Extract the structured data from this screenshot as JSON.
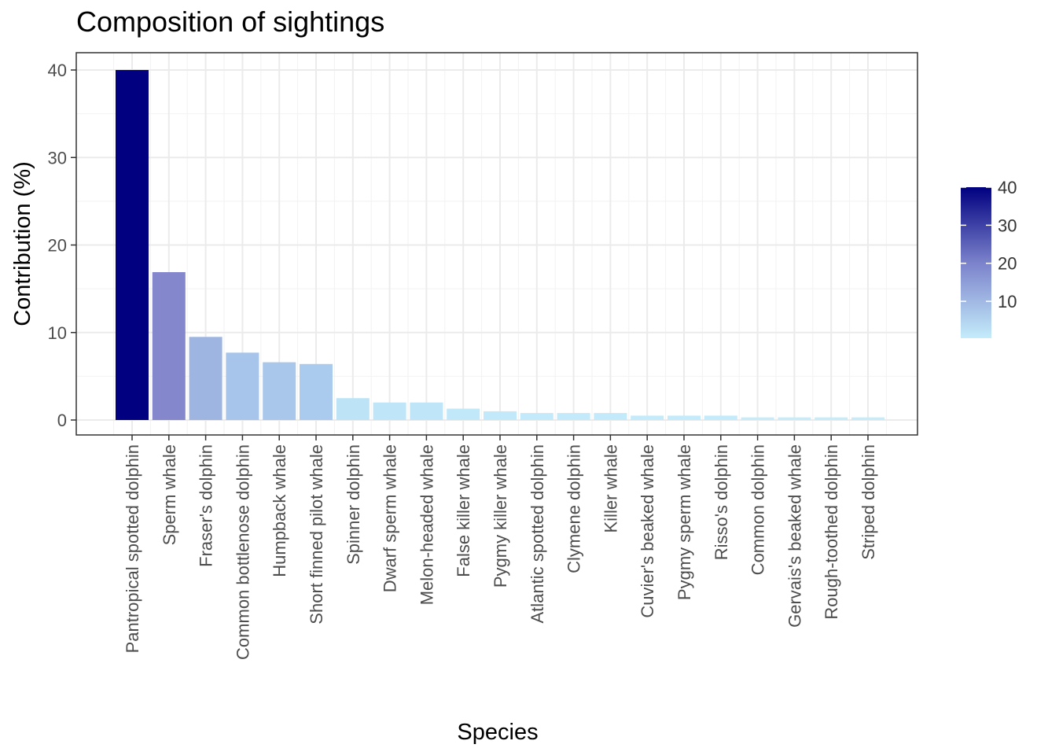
{
  "chart_data": {
    "type": "bar",
    "title": "Composition of sightings",
    "xlabel": "Species",
    "ylabel": "Contribution (%)",
    "ylim": [
      -2,
      42
    ],
    "yticks": [
      0,
      10,
      20,
      30,
      40
    ],
    "grid": true,
    "categories": [
      "Pantropical spotted dolphin",
      "Sperm whale",
      "Fraser's dolphin",
      "Common bottlenose dolphin",
      "Humpback whale",
      "Short finned pilot whale",
      "Spinner dolphin",
      "Dwarf sperm whale",
      "Melon-headed whale",
      "False killer whale",
      "Pygmy killer whale",
      "Atlantic spotted dolphin",
      "Clymene dolphin",
      "Killer whale",
      "Cuvier's beaked whale",
      "Pygmy sperm whale",
      "Risso's dolphin",
      "Common dolphin",
      "Gervais's beaked whale",
      "Rough-toothed dolphin",
      "Striped dolphin"
    ],
    "values": [
      40,
      16.9,
      9.5,
      7.7,
      6.6,
      6.4,
      2.5,
      2.0,
      2.0,
      1.3,
      1.0,
      0.8,
      0.8,
      0.8,
      0.5,
      0.5,
      0.5,
      0.3,
      0.3,
      0.3,
      0.3
    ],
    "bar_colors": [
      "#000080",
      "#8487cc",
      "#9eb5e2",
      "#a7c4ea",
      "#a9c6eb",
      "#aacaee",
      "#bde3f7",
      "#bee5f8",
      "#bee5f8",
      "#c0e8f9",
      "#c1e9fa",
      "#c2eafa",
      "#c2eafa",
      "#c2eafa",
      "#c3ebfb",
      "#c3ebfb",
      "#c3ebfb",
      "#c4ecfb",
      "#c4ecfb",
      "#c4ecfb",
      "#c4ecfb"
    ],
    "legend": {
      "position": "right",
      "type": "colorbar",
      "ticks": [
        10,
        20,
        30,
        40
      ],
      "range": [
        0.3,
        40
      ],
      "low_color": "#c4ecfb",
      "mid_color": "#7b82cb",
      "high_color": "#000080"
    }
  }
}
